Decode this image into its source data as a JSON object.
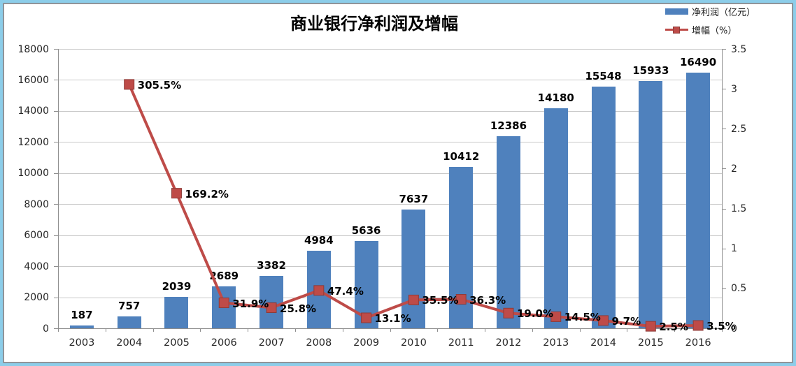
{
  "frame": {
    "outer_border_color": "#8ccde9",
    "inner_border_color": "#8f9499",
    "background": "#ffffff"
  },
  "chart_data": {
    "type": "bar",
    "title": "商业银行净利润及增幅",
    "categories": [
      "2003",
      "2004",
      "2005",
      "2006",
      "2007",
      "2008",
      "2009",
      "2010",
      "2011",
      "2012",
      "2013",
      "2014",
      "2015",
      "2016"
    ],
    "series": [
      {
        "name": "净利润（亿元）",
        "type": "bar",
        "axis": "left",
        "color": "#4F81BD",
        "values": [
          187,
          757,
          2039,
          2689,
          3382,
          4984,
          5636,
          7637,
          10412,
          12386,
          14180,
          15548,
          15933,
          16490
        ],
        "labels": [
          "187",
          "757",
          "2039",
          "2689",
          "3382",
          "4984",
          "5636",
          "7637",
          "10412",
          "12386",
          "14180",
          "15548",
          "15933",
          "16490"
        ]
      },
      {
        "name": "增幅（%）",
        "type": "line",
        "axis": "right",
        "color": "#BE4B48",
        "marker": "square",
        "marker_border_color": "#8E3B38",
        "values_percent": [
          null,
          305.5,
          169.2,
          31.9,
          25.8,
          47.4,
          13.1,
          35.5,
          36.3,
          19.0,
          14.5,
          9.7,
          2.5,
          3.5
        ],
        "labels": [
          "",
          "305.5%",
          "169.2%",
          "31.9%",
          "25.8%",
          "47.4%",
          "13.1%",
          "35.5%",
          "36.3%",
          "19.0%",
          "14.5%",
          "9.7%",
          "2.5%",
          "3.5%"
        ]
      }
    ],
    "left_axis": {
      "min": 0,
      "max": 18000,
      "step": 2000,
      "ticks": [
        "0",
        "2000",
        "4000",
        "6000",
        "8000",
        "10000",
        "12000",
        "14000",
        "16000",
        "18000"
      ]
    },
    "right_axis": {
      "min": 0,
      "max": 3.5,
      "step": 0.5,
      "ticks": [
        "0",
        "0.5",
        "1",
        "1.5",
        "2",
        "2.5",
        "3",
        "3.5"
      ]
    },
    "grid": true,
    "legend_position": "top-right"
  },
  "legend": {
    "items": [
      {
        "label": "净利润（亿元）",
        "swatch": "bar",
        "color": "#4F81BD"
      },
      {
        "label": "增幅（%）",
        "swatch": "line-marker",
        "color": "#BE4B48"
      }
    ]
  }
}
